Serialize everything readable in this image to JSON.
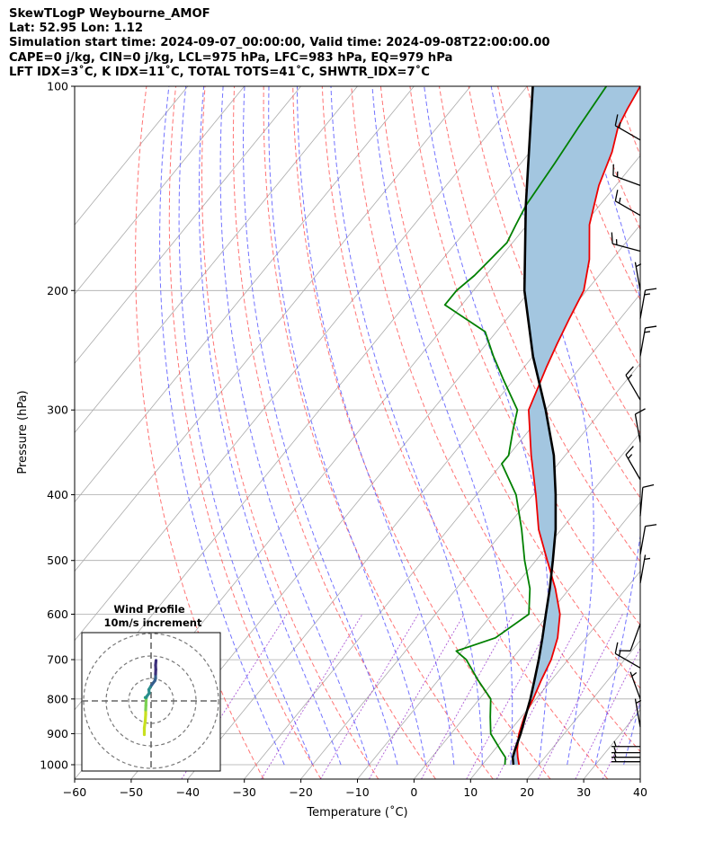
{
  "header": {
    "line1": "SkewTLogP Weybourne_AMOF",
    "line2": "Lat: 52.95   Lon: 1.12",
    "line3": "Simulation start time: 2024-09-07_00:00:00, Valid time: 2024-09-08T22:00:00.00",
    "line4": "CAPE=0 j/kg, CIN=0 j/kg, LCL=975 hPa, LFC=983 hPa, EQ=979 hPa",
    "line5": "LFT IDX=3˚C, K IDX=11˚C, TOTAL TOTS=41˚C, SHWTR_IDX=7˚C"
  },
  "colors": {
    "temperature": "#ee0000",
    "dewpoint": "#008000",
    "parcel": "#000000",
    "cape_fill": "#a3c6e0",
    "dry_adiabat": "#ff5c5c",
    "moist_adiabat": "#5a5aff",
    "mixing_ratio": "#9933cc",
    "isotherm": "#aaaaaa"
  },
  "chart_data": [
    {
      "type": "line",
      "subtype": "skew-t log-p",
      "xlabel": "Temperature (˚C)",
      "ylabel": "Pressure (hPa)",
      "xlim": [
        -60,
        40
      ],
      "ylim": [
        1050,
        100
      ],
      "xticks": [
        "−60",
        "−50",
        "−40",
        "−30",
        "−20",
        "−10",
        "0",
        "10",
        "20",
        "30",
        "40"
      ],
      "yticks": [
        "100",
        "200",
        "300",
        "400",
        "500",
        "600",
        "700",
        "800",
        "900",
        "1000"
      ],
      "series": [
        {
          "name": "Temperature",
          "points": [
            [
              1000,
              16.5
            ],
            [
              975,
              15.2
            ],
            [
              950,
              14
            ],
            [
              900,
              12
            ],
            [
              850,
              10.5
            ],
            [
              800,
              9.5
            ],
            [
              750,
              8.2
            ],
            [
              700,
              7
            ],
            [
              650,
              5
            ],
            [
              600,
              2
            ],
            [
              550,
              -2.5
            ],
            [
              500,
              -8
            ],
            [
              450,
              -14
            ],
            [
              400,
              -19.5
            ],
            [
              350,
              -26
            ],
            [
              300,
              -33
            ],
            [
              260,
              -36
            ],
            [
              240,
              -37.5
            ],
            [
              220,
              -39
            ],
            [
              200,
              -40.5
            ],
            [
              180,
              -44
            ],
            [
              160,
              -49
            ],
            [
              140,
              -53
            ],
            [
              125,
              -55.5
            ],
            [
              115,
              -58
            ],
            [
              108,
              -59
            ],
            [
              100,
              -60
            ]
          ]
        },
        {
          "name": "Dewpoint",
          "points": [
            [
              1000,
              14
            ],
            [
              975,
              13
            ],
            [
              950,
              11
            ],
            [
              900,
              7
            ],
            [
              850,
              4.5
            ],
            [
              800,
              2
            ],
            [
              750,
              -3
            ],
            [
              700,
              -8
            ],
            [
              680,
              -11
            ],
            [
              650,
              -6
            ],
            [
              600,
              -3.5
            ],
            [
              550,
              -7
            ],
            [
              500,
              -12
            ],
            [
              450,
              -17
            ],
            [
              400,
              -23
            ],
            [
              360,
              -30
            ],
            [
              350,
              -30
            ],
            [
              320,
              -33
            ],
            [
              300,
              -35
            ],
            [
              270,
              -42
            ],
            [
              250,
              -47
            ],
            [
              230,
              -52
            ],
            [
              210,
              -63
            ],
            [
              200,
              -63
            ],
            [
              190,
              -62
            ],
            [
              170,
              -61
            ],
            [
              160,
              -62
            ],
            [
              150,
              -63
            ],
            [
              130,
              -64
            ],
            [
              115,
              -65
            ],
            [
              100,
              -66
            ]
          ]
        },
        {
          "name": "Parcel",
          "points": [
            [
              1000,
              15.5
            ],
            [
              975,
              14.3
            ],
            [
              950,
              13.6
            ],
            [
              900,
              12.3
            ],
            [
              850,
              10.7
            ],
            [
              800,
              9
            ],
            [
              750,
              7
            ],
            [
              700,
              4.8
            ],
            [
              650,
              2.3
            ],
            [
              600,
              -0.5
            ],
            [
              550,
              -3.5
            ],
            [
              500,
              -7
            ],
            [
              450,
              -11
            ],
            [
              400,
              -16
            ],
            [
              350,
              -22
            ],
            [
              300,
              -30
            ],
            [
              250,
              -40
            ],
            [
              200,
              -51
            ],
            [
              150,
              -63
            ],
            [
              100,
              -79
            ]
          ]
        }
      ],
      "wind_barbs": [
        {
          "p": 990,
          "speed": 5,
          "dir": 270
        },
        {
          "p": 975,
          "speed": 5,
          "dir": 270
        },
        {
          "p": 960,
          "speed": 5,
          "dir": 270
        },
        {
          "p": 940,
          "speed": 5,
          "dir": 270
        },
        {
          "p": 880,
          "speed": 5,
          "dir": 350
        },
        {
          "p": 800,
          "speed": 5,
          "dir": 340
        },
        {
          "p": 720,
          "speed": 15,
          "dir": 300
        },
        {
          "p": 620,
          "speed": 10,
          "dir": 200
        },
        {
          "p": 540,
          "speed": 5,
          "dir": 10
        },
        {
          "p": 490,
          "speed": 10,
          "dir": 10
        },
        {
          "p": 430,
          "speed": 10,
          "dir": 5
        },
        {
          "p": 380,
          "speed": 15,
          "dir": 330
        },
        {
          "p": 335,
          "speed": 10,
          "dir": 350
        },
        {
          "p": 290,
          "speed": 15,
          "dir": 330
        },
        {
          "p": 250,
          "speed": 15,
          "dir": 10
        },
        {
          "p": 220,
          "speed": 15,
          "dir": 10
        },
        {
          "p": 200,
          "speed": 5,
          "dir": 350
        },
        {
          "p": 175,
          "speed": 15,
          "dir": 285
        },
        {
          "p": 155,
          "speed": 15,
          "dir": 300
        },
        {
          "p": 140,
          "speed": 15,
          "dir": 290
        },
        {
          "p": 120,
          "speed": 15,
          "dir": 300
        }
      ]
    },
    {
      "type": "scatter",
      "subtype": "hodograph",
      "title": "Wind Profile",
      "subtitle": "10m/s increment",
      "rings_mps": [
        10,
        20,
        30
      ],
      "u_mps": [
        -3,
        -3,
        -2.6,
        -2.4,
        -2.4,
        -2.3,
        -2.2,
        -2.2,
        -2.1,
        -2.6,
        -2.3,
        -0.8,
        -1.0,
        0.2,
        1.7,
        2.0,
        2.0,
        2.1,
        2.0,
        2.2
      ],
      "v_mps": [
        -15,
        -12,
        -9,
        -6,
        -4,
        -2,
        0.8,
        1.5,
        1.5,
        1.5,
        1.5,
        3.5,
        5,
        7,
        9,
        10,
        12,
        14,
        16,
        18
      ]
    }
  ]
}
